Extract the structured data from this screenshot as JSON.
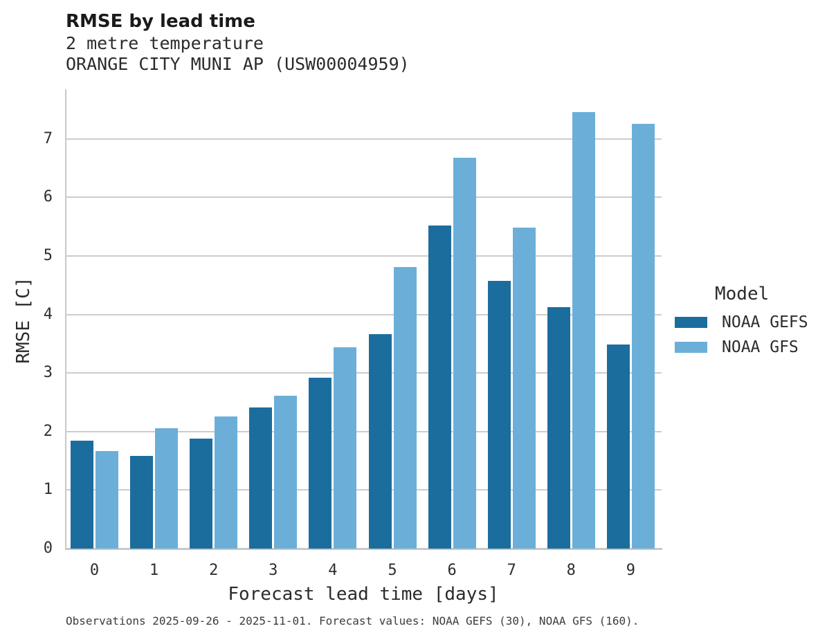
{
  "header": {
    "title": "RMSE by lead time",
    "subtitle_variable": "2 metre temperature",
    "subtitle_station": "ORANGE CITY MUNI AP (USW00004959)"
  },
  "legend": {
    "title": "Model",
    "items": [
      {
        "label": "NOAA GEFS",
        "color": "#1B6D9E"
      },
      {
        "label": "NOAA GFS",
        "color": "#6BAFD8"
      }
    ]
  },
  "footer": {
    "text": "Observations 2025-09-26 - 2025-11-01. Forecast values: NOAA GEFS (30), NOAA GFS (160)."
  },
  "colors": {
    "gefs_bar": "#1B6D9E",
    "gfs_bar": "#6BAFD8",
    "gridline": "#cccccc",
    "spine": "#c8c8c8"
  },
  "chart_data": {
    "type": "bar",
    "title": "RMSE by lead time",
    "subtitle": [
      "2 metre temperature",
      "ORANGE CITY MUNI AP (USW00004959)"
    ],
    "xlabel": "Forecast lead time [days]",
    "ylabel": "RMSE [C]",
    "categories": [
      "0",
      "1",
      "2",
      "3",
      "4",
      "5",
      "6",
      "7",
      "8",
      "9"
    ],
    "series": [
      {
        "name": "NOAA GEFS",
        "color": "#1B6D9E",
        "values": [
          1.85,
          1.58,
          1.88,
          2.41,
          2.92,
          3.67,
          5.52,
          4.57,
          4.13,
          3.49
        ]
      },
      {
        "name": "NOAA GFS",
        "color": "#6BAFD8",
        "values": [
          1.67,
          2.06,
          2.26,
          2.61,
          3.44,
          4.81,
          6.68,
          5.48,
          7.46,
          7.26
        ]
      }
    ],
    "ylim": [
      0,
      7.85
    ],
    "yticks": [
      0,
      1,
      2,
      3,
      4,
      5,
      6,
      7
    ],
    "grid": true,
    "legend_position": "right"
  }
}
